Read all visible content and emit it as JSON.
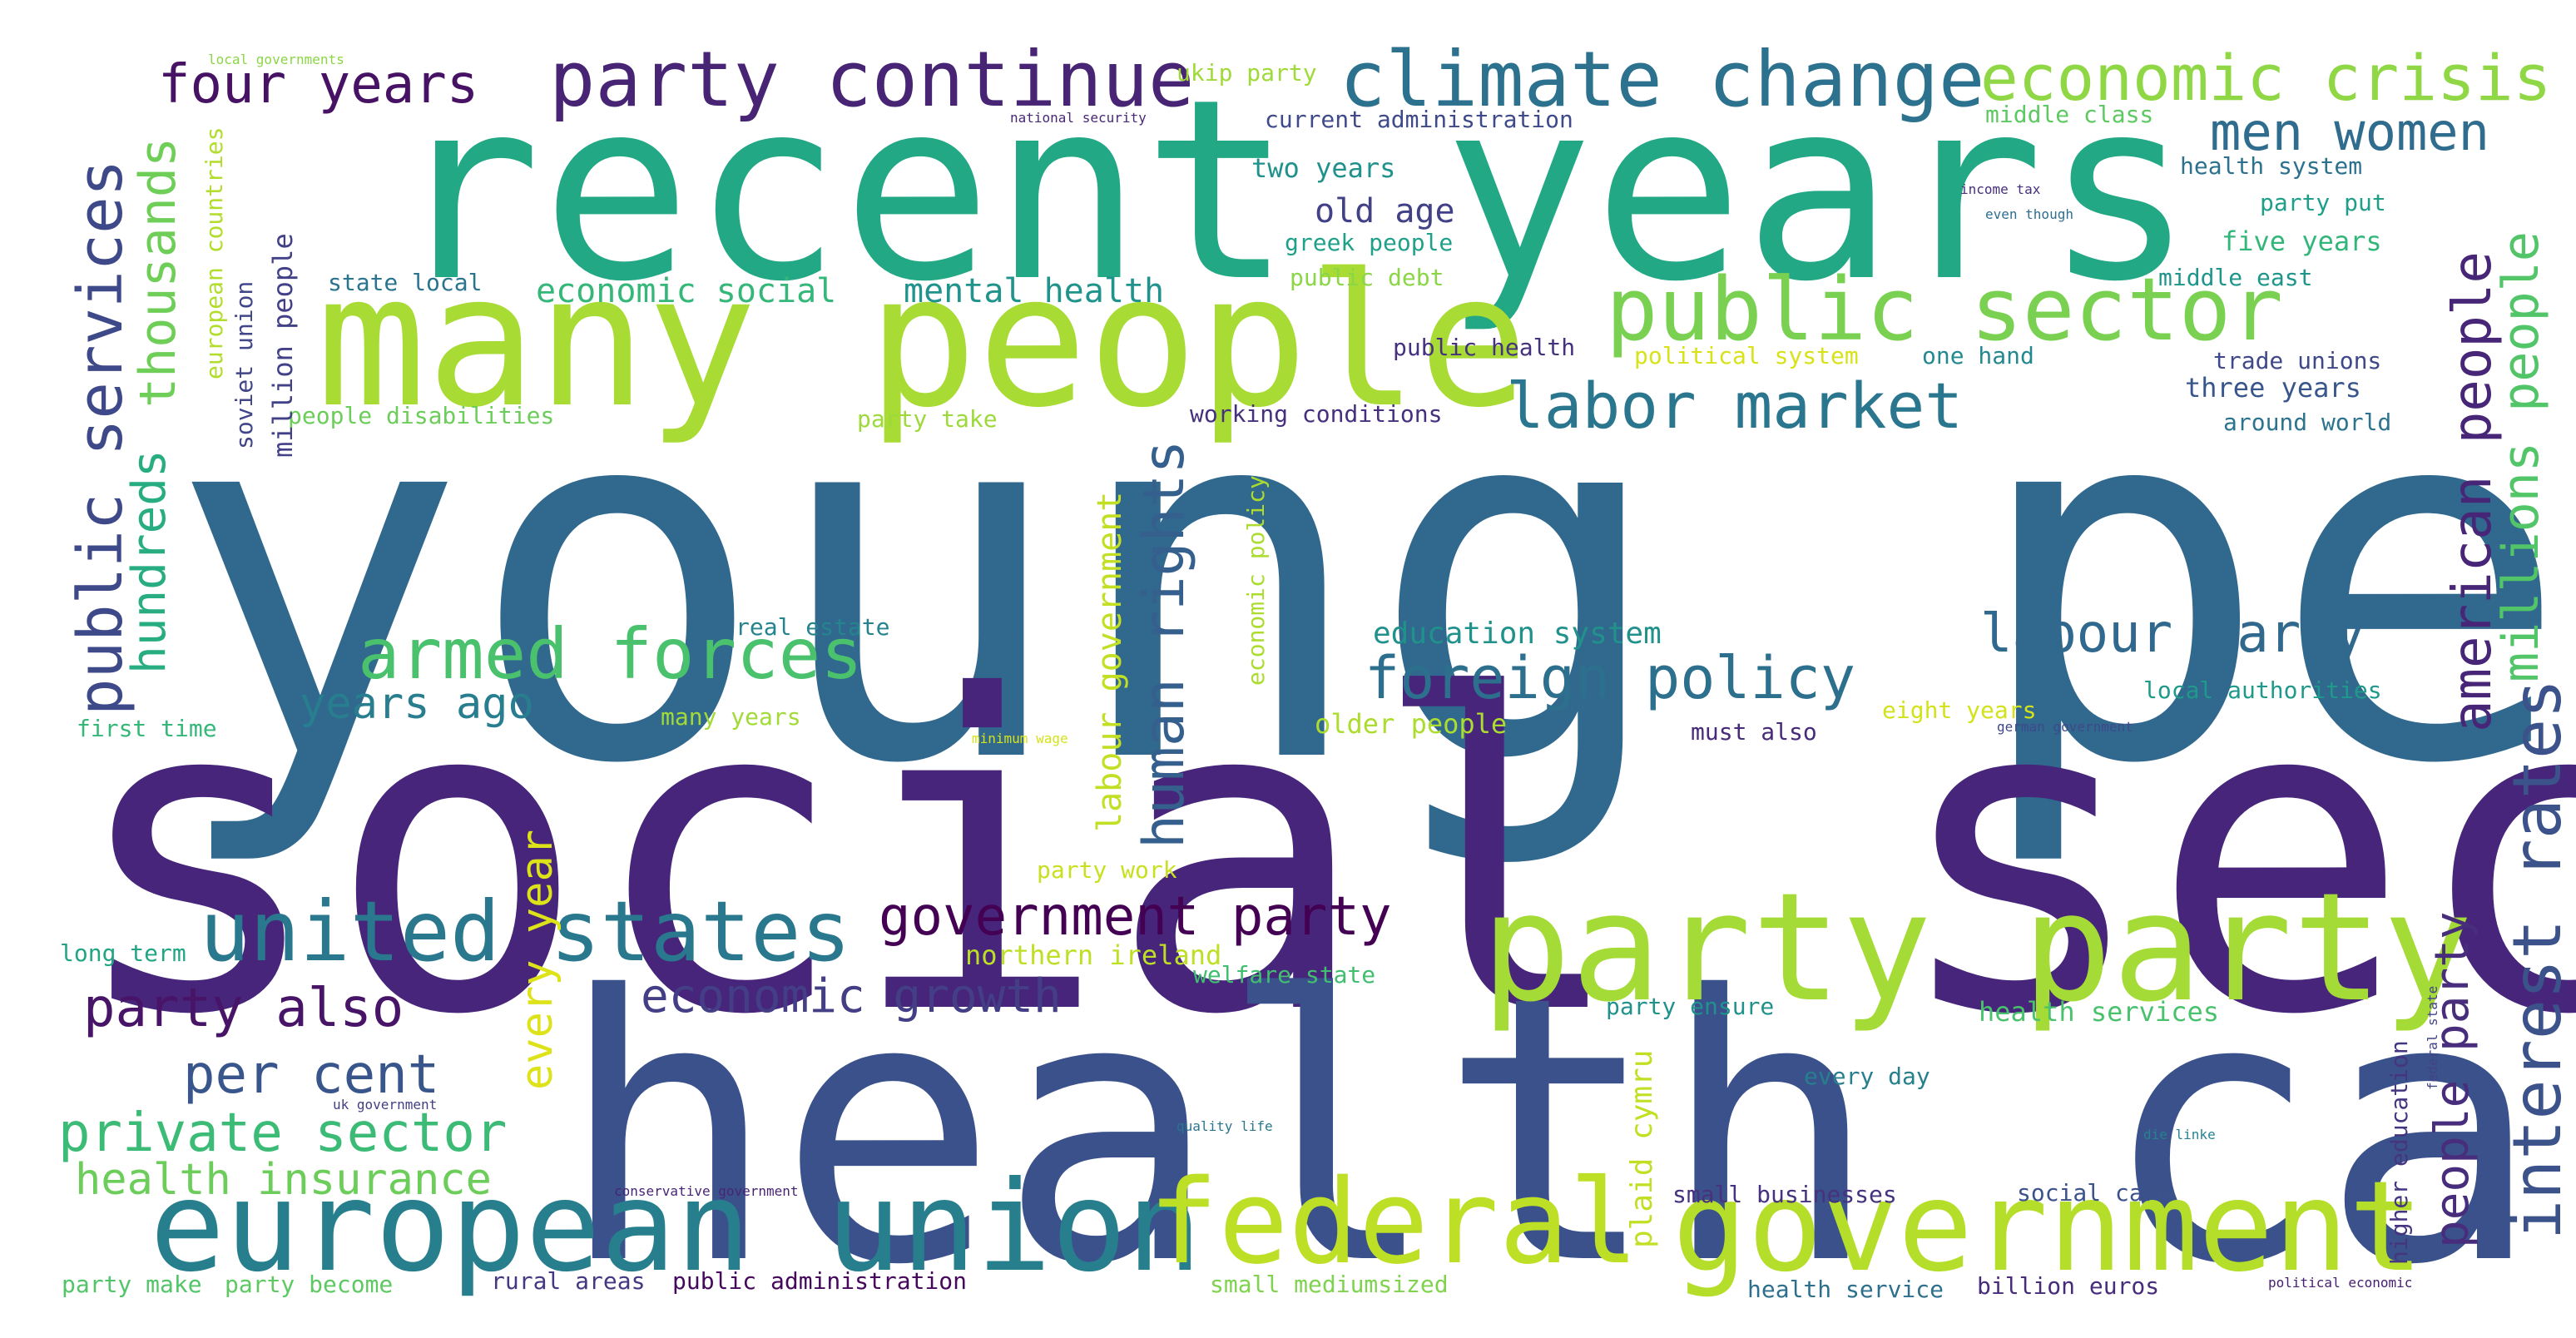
{
  "words": [
    {
      "text": "young people",
      "color": "#31688e"
    },
    {
      "text": "social security",
      "color": "#46257a"
    },
    {
      "text": "health care",
      "color": "#3b518b"
    },
    {
      "text": "recent years",
      "color": "#22a884"
    },
    {
      "text": "many people",
      "color": "#a8db34"
    },
    {
      "text": "party party",
      "color": "#a5db36"
    },
    {
      "text": "european union",
      "color": "#277f8e"
    },
    {
      "text": "government",
      "color": "#b5de2b"
    },
    {
      "text": "federal",
      "color": "#bddf26"
    },
    {
      "text": "united states",
      "color": "#2a788e"
    },
    {
      "text": "public sector",
      "color": "#7ad151"
    },
    {
      "text": "climate change",
      "color": "#2c728e"
    },
    {
      "text": "party continue",
      "color": "#482475"
    },
    {
      "text": "economic crisis",
      "color": "#8fd744"
    },
    {
      "text": "labor market",
      "color": "#2a768e"
    },
    {
      "text": "armed forces",
      "color": "#4ac16d"
    },
    {
      "text": "foreign policy",
      "color": "#2d708e"
    },
    {
      "text": "labour party",
      "color": "#31688e"
    },
    {
      "text": "government party",
      "color": "#440154"
    },
    {
      "text": "private sector",
      "color": "#3bbb75"
    },
    {
      "text": "party also",
      "color": "#481467"
    },
    {
      "text": "per cent",
      "color": "#39568c"
    },
    {
      "text": "economic growth",
      "color": "#433e85"
    },
    {
      "text": "health insurance",
      "color": "#6ccd5a"
    },
    {
      "text": "four years",
      "color": "#471164"
    },
    {
      "text": "men women",
      "color": "#2f6c8e"
    },
    {
      "text": "years ago",
      "color": "#287d8e"
    },
    {
      "text": "public services",
      "color": "#3e4989"
    },
    {
      "text": "interest rates",
      "color": "#3b528b"
    },
    {
      "text": "american people",
      "color": "#482677"
    },
    {
      "text": "human rights",
      "color": "#355f8d"
    },
    {
      "text": "millions people",
      "color": "#52c569"
    },
    {
      "text": "people party",
      "color": "#472d7b"
    },
    {
      "text": "thousands",
      "color": "#6ece58"
    },
    {
      "text": "hundreds",
      "color": "#27ad81"
    },
    {
      "text": "every year",
      "color": "#dde318"
    },
    {
      "text": "labour government",
      "color": "#c2df23"
    },
    {
      "text": "old age",
      "color": "#424086"
    },
    {
      "text": "economic social",
      "color": "#35b779"
    },
    {
      "text": "mental health",
      "color": "#20938c"
    },
    {
      "text": "two years",
      "color": "#21918c"
    },
    {
      "text": "education system",
      "color": "#21918c"
    },
    {
      "text": "older people",
      "color": "#addc30"
    },
    {
      "text": "greek people",
      "color": "#1fa088"
    },
    {
      "text": "public debt",
      "color": "#8bd646"
    },
    {
      "text": "public health",
      "color": "#46317e"
    },
    {
      "text": "political system",
      "color": "#d8e219"
    },
    {
      "text": "one hand",
      "color": "#23898e"
    },
    {
      "text": "working conditions",
      "color": "#46307e"
    },
    {
      "text": "party take",
      "color": "#9dd93b"
    },
    {
      "text": "people disabilities",
      "color": "#6ccd5a"
    },
    {
      "text": "state local",
      "color": "#2b748e"
    },
    {
      "text": "current administration",
      "color": "#3e4a89"
    },
    {
      "text": "ukip party",
      "color": "#a0da39"
    },
    {
      "text": "national security",
      "color": "#482878"
    },
    {
      "text": "middle class",
      "color": "#5ec962"
    },
    {
      "text": "health system",
      "color": "#2c728e"
    },
    {
      "text": "income tax",
      "color": "#472f7d"
    },
    {
      "text": "even though",
      "color": "#2e6e8e"
    },
    {
      "text": "party put",
      "color": "#1f9e89"
    },
    {
      "text": "five years",
      "color": "#32b67a"
    },
    {
      "text": "middle east",
      "color": "#1f968b"
    },
    {
      "text": "trade unions",
      "color": "#3f4889"
    },
    {
      "text": "three years",
      "color": "#39568c"
    },
    {
      "text": "around world",
      "color": "#2c738e"
    },
    {
      "text": "local authorities",
      "color": "#1f9a8a"
    },
    {
      "text": "must also",
      "color": "#472a7a"
    },
    {
      "text": "eight years",
      "color": "#d2e21b"
    },
    {
      "text": "german government",
      "color": "#3e4989"
    },
    {
      "text": "real estate",
      "color": "#25848e"
    },
    {
      "text": "many years",
      "color": "#a2da37"
    },
    {
      "text": "minimum wage",
      "color": "#d5e21a"
    },
    {
      "text": "economic policy",
      "color": "#addc30"
    },
    {
      "text": "first time",
      "color": "#35b779"
    },
    {
      "text": "party work",
      "color": "#c8e020"
    },
    {
      "text": "northern ireland",
      "color": "#bddf26"
    },
    {
      "text": "welfare state",
      "color": "#42be71"
    },
    {
      "text": "party ensure",
      "color": "#21918c"
    },
    {
      "text": "health services",
      "color": "#4ac16d"
    },
    {
      "text": "every day",
      "color": "#277f8e"
    },
    {
      "text": "plaid cymru",
      "color": "#c2df23"
    },
    {
      "text": "higher education",
      "color": "#453581"
    },
    {
      "text": "federal state",
      "color": "#414487"
    },
    {
      "text": "quality life",
      "color": "#2a768e"
    },
    {
      "text": "die linke",
      "color": "#26828e"
    },
    {
      "text": "small businesses",
      "color": "#46327e"
    },
    {
      "text": "social care",
      "color": "#3b528b"
    },
    {
      "text": "conservative government",
      "color": "#482475"
    },
    {
      "text": "small mediumsized",
      "color": "#7fd34e"
    },
    {
      "text": "health service",
      "color": "#2d708e"
    },
    {
      "text": "billion euros",
      "color": "#472c7a"
    },
    {
      "text": "political economic",
      "color": "#482071"
    },
    {
      "text": "public administration",
      "color": "#46085c"
    },
    {
      "text": "rural areas",
      "color": "#453882"
    },
    {
      "text": "party become",
      "color": "#5ec962"
    },
    {
      "text": "party make",
      "color": "#52c569"
    },
    {
      "text": "long term",
      "color": "#21a585"
    },
    {
      "text": "uk government",
      "color": "#433e85"
    },
    {
      "text": "european countries",
      "color": "#b2dd2d"
    },
    {
      "text": "soviet union",
      "color": "#404688"
    },
    {
      "text": "million people",
      "color": "#424086"
    },
    {
      "text": "local governments",
      "color": "#8bd646"
    }
  ]
}
